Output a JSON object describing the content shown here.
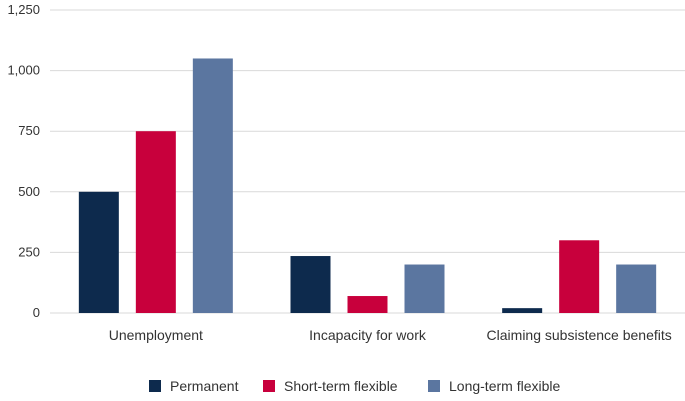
{
  "chart_data": {
    "type": "bar",
    "title": "",
    "xlabel": "",
    "ylabel": "",
    "categories": [
      "Unemployment",
      "Incapacity for work",
      "Claiming subsistence benefits"
    ],
    "series": [
      {
        "name": "Permanent",
        "color": "#0d2a4d",
        "values": [
          500,
          235,
          20
        ]
      },
      {
        "name": "Short-term flexible",
        "color": "#c8003c",
        "values": [
          750,
          70,
          300
        ]
      },
      {
        "name": "Long-term flexible",
        "color": "#5b76a0",
        "values": [
          1050,
          200,
          200
        ]
      }
    ],
    "ylim": [
      0,
      1250
    ],
    "yticks": [
      0,
      250,
      500,
      750,
      1000,
      1250
    ],
    "ytick_labels": [
      "0",
      "250",
      "500",
      "750",
      "1,000",
      "1,250"
    ],
    "grid": true,
    "legend_position": "bottom"
  }
}
